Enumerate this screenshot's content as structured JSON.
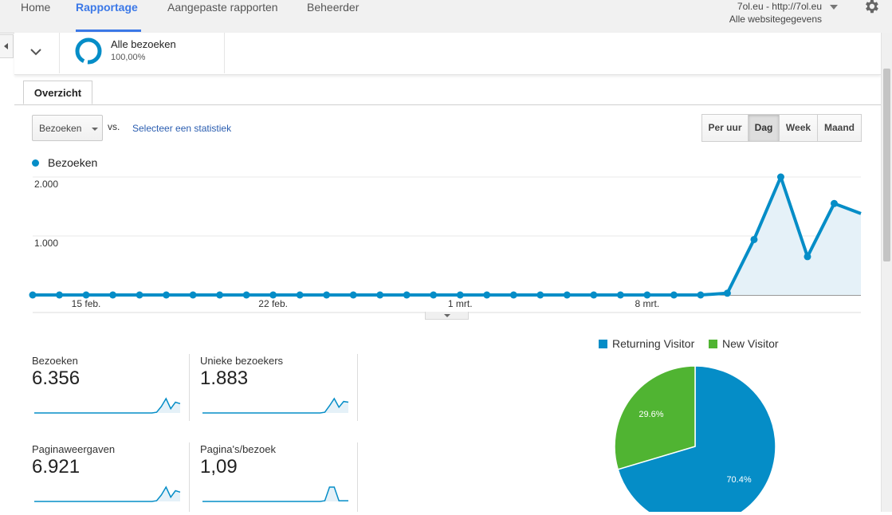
{
  "nav": {
    "tabs": [
      "Home",
      "Rapportage",
      "Aangepaste rapporten",
      "Beheerder"
    ],
    "active": "Rapportage",
    "account_line1": "7ol.eu - http://7ol.eu",
    "account_line2": "Alle websitegegevens",
    "settings_icon": "gear-icon"
  },
  "segment": {
    "name": "Alle bezoeken",
    "percent": "100,00%"
  },
  "tabs": {
    "overview": "Overzicht"
  },
  "controls": {
    "metric": "Bezoeken",
    "vs": "vs.",
    "select_stat": "Selecteer een statistiek",
    "periods": [
      "Per uur",
      "Dag",
      "Week",
      "Maand"
    ],
    "selected_period": "Dag"
  },
  "chart_data": [
    {
      "type": "area",
      "series": [
        {
          "name": "Bezoeken",
          "values": [
            0,
            0,
            0,
            0,
            0,
            0,
            0,
            0,
            0,
            0,
            0,
            0,
            0,
            0,
            0,
            0,
            0,
            0,
            0,
            0,
            0,
            0,
            0,
            0,
            0,
            0,
            30,
            940,
            2000,
            650,
            1550,
            1380
          ],
          "color": "#058dc7"
        }
      ],
      "x_tick_labels": [
        "15 feb.",
        "22 feb.",
        "1 mrt.",
        "8 mrt."
      ],
      "y_tick_labels": [
        "1.000",
        "2.000"
      ],
      "ylim": [
        0,
        2000
      ],
      "grid": true
    },
    {
      "type": "pie",
      "categories": [
        "Returning Visitor",
        "New Visitor"
      ],
      "values": [
        70.4,
        29.6
      ],
      "labels": [
        "70.4%",
        "29.6%"
      ],
      "colors": [
        "#058dc7",
        "#50b432"
      ]
    }
  ],
  "scorecards": [
    {
      "name": "Bezoeken",
      "value": "6.356",
      "spark": [
        0,
        0,
        0,
        0,
        0,
        0,
        0,
        0,
        0,
        0,
        0,
        0,
        0,
        0,
        0,
        0,
        0,
        0,
        0,
        0,
        0,
        0,
        0,
        0,
        0,
        0,
        1,
        9,
        20,
        6,
        15,
        13
      ]
    },
    {
      "name": "Unieke bezoekers",
      "value": "1.883",
      "spark": [
        0,
        0,
        0,
        0,
        0,
        0,
        0,
        0,
        0,
        0,
        0,
        0,
        0,
        0,
        0,
        0,
        0,
        0,
        0,
        0,
        0,
        0,
        0,
        0,
        0,
        0,
        1,
        10,
        20,
        8,
        16,
        15
      ]
    },
    {
      "name": "Paginaweergaven",
      "value": "6.921",
      "spark": [
        0,
        0,
        0,
        0,
        0,
        0,
        0,
        0,
        0,
        0,
        0,
        0,
        0,
        0,
        0,
        0,
        0,
        0,
        0,
        0,
        0,
        0,
        0,
        0,
        0,
        0,
        1,
        9,
        20,
        6,
        15,
        13
      ]
    },
    {
      "name": "Pagina's/bezoek",
      "value": "1,09",
      "spark": [
        0,
        0,
        0,
        0,
        0,
        0,
        0,
        0,
        0,
        0,
        0,
        0,
        0,
        0,
        0,
        0,
        0,
        0,
        0,
        0,
        0,
        0,
        0,
        0,
        0,
        0,
        1,
        20,
        20,
        1,
        1,
        1
      ]
    }
  ]
}
